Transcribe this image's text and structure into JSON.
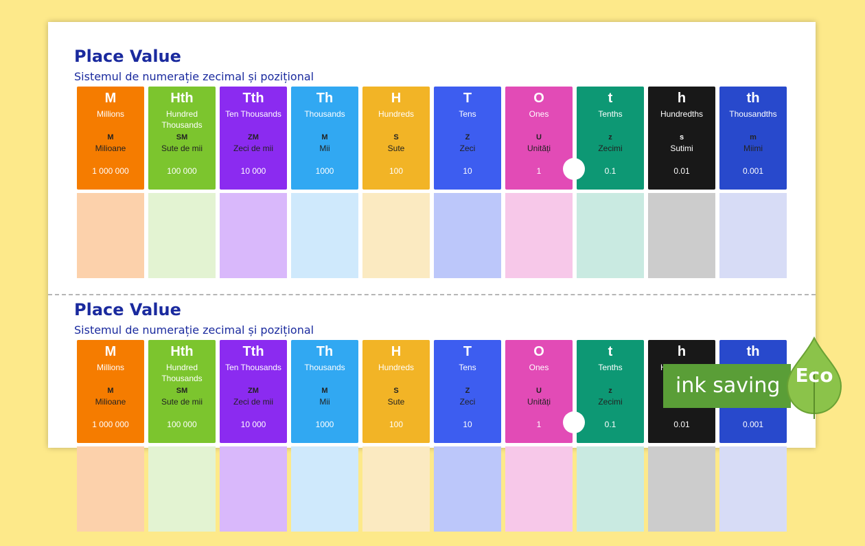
{
  "title": "Place Value",
  "subtitle": "Sistemul de numerație zecimal și pozițional",
  "columns": [
    {
      "symbol": "M",
      "name": "Millions",
      "abbr": "M",
      "ro": "Milioane",
      "value": "1 000 000",
      "color": "#f57c00",
      "light": "#fcd1ab"
    },
    {
      "symbol": "Hth",
      "name": "Hundred Thousands",
      "abbr": "SM",
      "ro": "Sute de mii",
      "value": "100 000",
      "color": "#7cc52e",
      "light": "#e3f3d2"
    },
    {
      "symbol": "Tth",
      "name": "Ten Thousands",
      "abbr": "ZM",
      "ro": "Zeci de mii",
      "value": "10 000",
      "color": "#8b2bf0",
      "light": "#d9b8fb"
    },
    {
      "symbol": "Th",
      "name": "Thousands",
      "abbr": "M",
      "ro": "Mii",
      "value": "1000",
      "color": "#31a8f2",
      "light": "#cfe9fc"
    },
    {
      "symbol": "H",
      "name": "Hundreds",
      "abbr": "S",
      "ro": "Sute",
      "value": "100",
      "color": "#f2b426",
      "light": "#fbeac1"
    },
    {
      "symbol": "T",
      "name": "Tens",
      "abbr": "Z",
      "ro": "Zeci",
      "value": "10",
      "color": "#3d5df0",
      "light": "#bcc7fa"
    },
    {
      "symbol": "O",
      "name": "Ones",
      "abbr": "U",
      "ro": "Unități",
      "value": "1",
      "color": "#e24bb6",
      "light": "#f7c8e9"
    },
    {
      "symbol": "t",
      "name": "Tenths",
      "abbr": "z",
      "ro": "Zecimi",
      "value": "0.1",
      "color": "#0d9874",
      "light": "#c9eae1"
    },
    {
      "symbol": "h",
      "name": "Hundredths",
      "abbr": "s",
      "ro": "Sutimi",
      "value": "0.01",
      "color": "#181818",
      "light": "#cccccc"
    },
    {
      "symbol": "th",
      "name": "Thousandths",
      "abbr": "m",
      "ro": "Miimi",
      "value": "0.001",
      "color": "#2849cc",
      "light": "#d7dcf6"
    }
  ],
  "badge": {
    "text": "ink saving",
    "eco": "Eco",
    "color": "#5a9e37"
  }
}
